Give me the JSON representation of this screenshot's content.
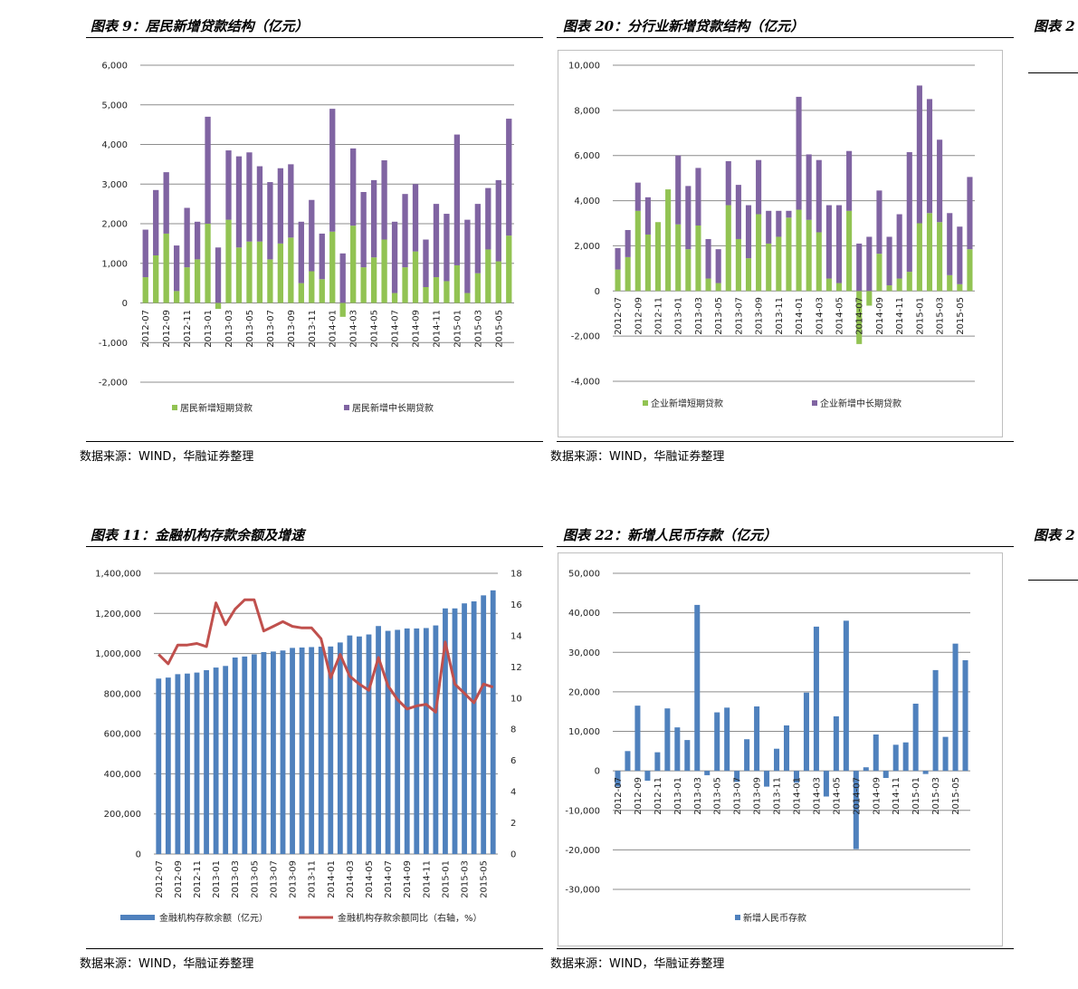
{
  "panels": [
    {
      "title": "图表 9：居民新增贷款结构（亿元）",
      "source": "数据来源：WIND，华融证券整理"
    },
    {
      "title": "图表 20：分行业新增贷款结构（亿元）",
      "source": "数据来源：WIND，华融证券整理"
    },
    {
      "title": "图表 11：金融机构存款余额及增速",
      "source": "数据来源：WIND，华融证券整理"
    },
    {
      "title": "图表 22：新增人民币存款（亿元）",
      "source": "数据来源：WIND，华融证券整理"
    },
    {
      "title": "图表 2"
    },
    {
      "title": "图表 2"
    }
  ],
  "chart_data": [
    {
      "type": "bar",
      "stacked": true,
      "title": "图表 9：居民新增贷款结构（亿元）",
      "ylim": [
        -2000,
        6000
      ],
      "yticks": [
        "6,000",
        "5,000",
        "4,000",
        "3,000",
        "2,000",
        "1,000",
        "0",
        "-1,000",
        "-2,000"
      ],
      "tick_labels": [
        "2012-07",
        "2012-09",
        "2012-11",
        "2013-01",
        "2013-03",
        "2013-05",
        "2013-07",
        "2013-09",
        "2013-11",
        "2014-01",
        "2014-03",
        "2014-05",
        "2014-07",
        "2014-09",
        "2014-11",
        "2015-01",
        "2015-03",
        "2015-05"
      ],
      "categories": [
        "2012-07",
        "2012-08",
        "2012-09",
        "2012-10",
        "2012-11",
        "2012-12",
        "2013-01",
        "2013-02",
        "2013-03",
        "2013-04",
        "2013-05",
        "2013-06",
        "2013-07",
        "2013-08",
        "2013-09",
        "2013-10",
        "2013-11",
        "2013-12",
        "2014-01",
        "2014-02",
        "2014-03",
        "2014-04",
        "2014-05",
        "2014-06",
        "2014-07",
        "2014-08",
        "2014-09",
        "2014-10",
        "2014-11",
        "2014-12",
        "2015-01",
        "2015-02",
        "2015-03",
        "2015-04",
        "2015-05",
        "2015-06"
      ],
      "series": [
        {
          "name": "居民新增短期贷款",
          "color": "#92c353",
          "values": [
            650,
            1200,
            1750,
            300,
            900,
            1100,
            2000,
            -150,
            2100,
            1400,
            1550,
            1550,
            1100,
            1500,
            1650,
            500,
            800,
            600,
            1800,
            -350,
            1950,
            900,
            1150,
            1600,
            250,
            900,
            1300,
            400,
            650,
            550,
            950,
            250,
            750,
            1350,
            1050,
            1700
          ]
        },
        {
          "name": "居民新增中长期贷款",
          "color": "#8064a2",
          "values": [
            1200,
            1650,
            1550,
            1150,
            1500,
            950,
            2700,
            1400,
            1750,
            2300,
            2250,
            1900,
            1950,
            1900,
            1850,
            1550,
            1800,
            1150,
            3100,
            1250,
            1950,
            1900,
            1950,
            2000,
            1800,
            1850,
            1700,
            1200,
            1850,
            1700,
            3300,
            1850,
            1750,
            1550,
            2050,
            2950
          ]
        }
      ],
      "legend_position": "bottom"
    },
    {
      "type": "bar",
      "stacked": true,
      "title": "图表 20：分行业新增贷款结构（亿元）",
      "ylim": [
        -4000,
        10000
      ],
      "yticks": [
        "10,000",
        "8,000",
        "6,000",
        "4,000",
        "2,000",
        "0",
        "-2,000",
        "-4,000"
      ],
      "tick_labels": [
        "2012-07",
        "2012-09",
        "2012-11",
        "2013-01",
        "2013-03",
        "2013-05",
        "2013-07",
        "2013-09",
        "2013-11",
        "2014-01",
        "2014-03",
        "2014-05",
        "2014-07",
        "2014-09",
        "2014-11",
        "2015-01",
        "2015-03",
        "2015-05"
      ],
      "categories": [
        "2012-07",
        "2012-08",
        "2012-09",
        "2012-10",
        "2012-11",
        "2012-12",
        "2013-01",
        "2013-02",
        "2013-03",
        "2013-04",
        "2013-05",
        "2013-06",
        "2013-07",
        "2013-08",
        "2013-09",
        "2013-10",
        "2013-11",
        "2013-12",
        "2014-01",
        "2014-02",
        "2014-03",
        "2014-04",
        "2014-05",
        "2014-06",
        "2014-07",
        "2014-08",
        "2014-09",
        "2014-10",
        "2014-11",
        "2014-12",
        "2015-01",
        "2015-02",
        "2015-03",
        "2015-04",
        "2015-05",
        "2015-06"
      ],
      "series": [
        {
          "name": "企业新增短期贷款",
          "color": "#92c353",
          "values": [
            950,
            1500,
            3550,
            2500,
            3050,
            4500,
            2950,
            1850,
            2900,
            550,
            350,
            3800,
            2300,
            1450,
            3400,
            2100,
            2400,
            3250,
            3600,
            3150,
            2600,
            550,
            350,
            3550,
            -2350,
            -650,
            1650,
            250,
            550,
            850,
            3000,
            3450,
            3050,
            700,
            300,
            1850
          ]
        },
        {
          "name": "企业新增中长期贷款",
          "color": "#8064a2",
          "values": [
            950,
            1200,
            1250,
            1650,
            0,
            0,
            3050,
            2800,
            2550,
            1750,
            1500,
            1950,
            2400,
            2350,
            2400,
            1450,
            1150,
            300,
            5000,
            2900,
            3200,
            3250,
            3450,
            2650,
            2100,
            2400,
            2800,
            2150,
            2850,
            5300,
            6100,
            5050,
            3650,
            2750,
            2550,
            3200
          ]
        }
      ],
      "legend_position": "bottom"
    },
    {
      "type": "bar+line",
      "title": "图表 11：金融机构存款余额及增速",
      "ylim": [
        0,
        1400000
      ],
      "ylim_right": [
        0,
        18
      ],
      "yticks": [
        "1,400,000",
        "1,200,000",
        "1,000,000",
        "800,000",
        "600,000",
        "400,000",
        "200,000",
        "0"
      ],
      "yticks_right": [
        "18",
        "16",
        "14",
        "12",
        "10",
        "8",
        "6",
        "4",
        "2",
        "0"
      ],
      "tick_labels": [
        "2012-07",
        "2012-09",
        "2012-11",
        "2013-01",
        "2013-03",
        "2013-05",
        "2013-07",
        "2013-09",
        "2013-11",
        "2014-01",
        "2014-03",
        "2014-05",
        "2014-07",
        "2014-09",
        "2014-11",
        "2015-01",
        "2015-03",
        "2015-05"
      ],
      "categories": [
        "2012-07",
        "2012-08",
        "2012-09",
        "2012-10",
        "2012-11",
        "2012-12",
        "2013-01",
        "2013-02",
        "2013-03",
        "2013-04",
        "2013-05",
        "2013-06",
        "2013-07",
        "2013-08",
        "2013-09",
        "2013-10",
        "2013-11",
        "2013-12",
        "2014-01",
        "2014-02",
        "2014-03",
        "2014-04",
        "2014-05",
        "2014-06",
        "2014-07",
        "2014-08",
        "2014-09",
        "2014-10",
        "2014-11",
        "2014-12",
        "2015-01",
        "2015-02",
        "2015-03",
        "2015-04",
        "2015-05",
        "2015-06"
      ],
      "series": [
        {
          "name": "金融机构存款余额（亿元）",
          "type": "bar",
          "color": "#4f81bd",
          "values": [
            875000,
            880000,
            897000,
            900000,
            905000,
            917000,
            930000,
            938000,
            980000,
            985000,
            996000,
            1007000,
            1010000,
            1015000,
            1028000,
            1030000,
            1032000,
            1034000,
            1035000,
            1055000,
            1090000,
            1085000,
            1095000,
            1137000,
            1113000,
            1118000,
            1125000,
            1125000,
            1127000,
            1140000,
            1225000,
            1225000,
            1250000,
            1260000,
            1290000,
            1315000
          ]
        },
        {
          "name": "金融机构存款余额同比（右轴，%）",
          "type": "line",
          "axis": "right",
          "color": "#c0504d",
          "values": [
            12.8,
            12.2,
            13.4,
            13.4,
            13.5,
            13.3,
            16.1,
            14.7,
            15.7,
            16.3,
            16.3,
            14.3,
            14.6,
            14.9,
            14.6,
            14.5,
            14.5,
            13.8,
            11.3,
            12.8,
            11.4,
            10.9,
            10.5,
            12.6,
            10.8,
            9.9,
            9.3,
            9.5,
            9.6,
            9.1,
            13.6,
            10.9,
            10.3,
            9.7,
            10.9,
            10.7
          ]
        }
      ],
      "legend_position": "bottom"
    },
    {
      "type": "bar",
      "title": "图表 22：新增人民币存款（亿元）",
      "ylim": [
        -30000,
        50000
      ],
      "yticks": [
        "50,000",
        "40,000",
        "30,000",
        "20,000",
        "10,000",
        "0",
        "-10,000",
        "-20,000",
        "-30,000"
      ],
      "tick_labels": [
        "2012-07",
        "2012-09",
        "2012-11",
        "2013-01",
        "2013-03",
        "2013-05",
        "2013-07",
        "2013-09",
        "2013-11",
        "2014-01",
        "2014-03",
        "2014-05",
        "2014-07",
        "2014-09",
        "2014-11",
        "2015-01",
        "2015-03",
        "2015-05"
      ],
      "categories": [
        "2012-07",
        "2012-08",
        "2012-09",
        "2012-10",
        "2012-11",
        "2012-12",
        "2013-01",
        "2013-02",
        "2013-03",
        "2013-04",
        "2013-05",
        "2013-06",
        "2013-07",
        "2013-08",
        "2013-09",
        "2013-10",
        "2013-11",
        "2013-12",
        "2014-01",
        "2014-02",
        "2014-03",
        "2014-04",
        "2014-05",
        "2014-06",
        "2014-07",
        "2014-08",
        "2014-09",
        "2014-10",
        "2014-11",
        "2014-12",
        "2015-01",
        "2015-02",
        "2015-03",
        "2015-04",
        "2015-05",
        "2015-06"
      ],
      "series": [
        {
          "name": "新增人民币存款",
          "color": "#4f81bd",
          "values": [
            -4000,
            5000,
            16500,
            -2500,
            4700,
            15800,
            11000,
            7800,
            42000,
            -1100,
            14800,
            16000,
            -2800,
            8000,
            16300,
            -4000,
            5600,
            11500,
            -3000,
            19800,
            36500,
            -6500,
            13800,
            38000,
            -19800,
            900,
            9200,
            -1800,
            6600,
            7200,
            17000,
            -800,
            25500,
            8600,
            32200,
            28000
          ]
        }
      ],
      "legend_position": "bottom"
    }
  ]
}
